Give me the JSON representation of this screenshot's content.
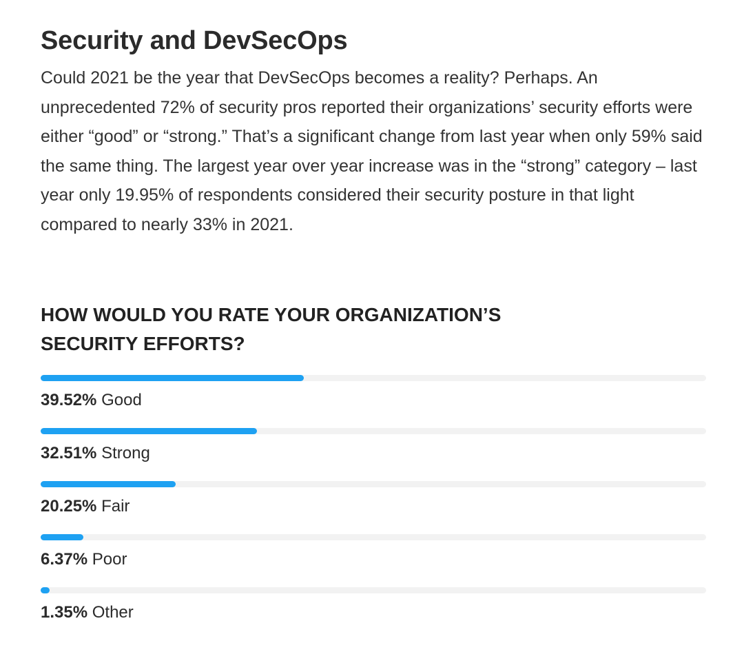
{
  "heading": "Security and DevSecOps",
  "intro": "Could 2021 be the year that DevSecOps becomes a reality? Perhaps. An unprecedented 72% of security pros reported their organizations’ security efforts were either “good” or “strong.” That’s a significant change from last year when only 59% said the same thing. The largest year over year increase was in the “strong” category – last year only 19.95% of respondents considered their security posture in that light compared to nearly 33% in 2021.",
  "colors": {
    "bar": "#1ea1f2",
    "track": "#f2f2f2"
  },
  "chart_data": {
    "type": "bar",
    "title": "HOW WOULD YOU RATE YOUR ORGANIZATION’S SECURITY EFFORTS?",
    "orientation": "horizontal",
    "xlim": [
      0,
      100
    ],
    "categories": [
      "Good",
      "Strong",
      "Fair",
      "Poor",
      "Other"
    ],
    "values": [
      39.52,
      32.51,
      20.25,
      6.37,
      1.35
    ],
    "value_labels": [
      "39.52%",
      "32.51%",
      "20.25%",
      "6.37%",
      "1.35%"
    ]
  }
}
